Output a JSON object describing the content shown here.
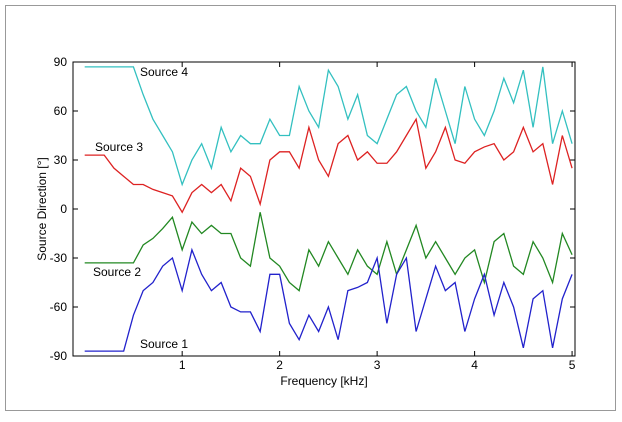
{
  "chart_data": {
    "type": "line",
    "xlabel": "Frequency [kHz]",
    "ylabel": "Source Direction [°]",
    "x": [
      0,
      0.1,
      0.2,
      0.3,
      0.4,
      0.5,
      0.6,
      0.7,
      0.8,
      0.9,
      1,
      1.1,
      1.2,
      1.3,
      1.4,
      1.5,
      1.6,
      1.7,
      1.8,
      1.9,
      2,
      2.1,
      2.2,
      2.3,
      2.4,
      2.5,
      2.6,
      2.7,
      2.8,
      2.9,
      3,
      3.1,
      3.2,
      3.3,
      3.4,
      3.5,
      3.6,
      3.7,
      3.8,
      3.9,
      4,
      4.1,
      4.2,
      4.3,
      4.4,
      4.5,
      4.6,
      4.7,
      4.8,
      4.9,
      5
    ],
    "series": [
      {
        "name": "Source 4",
        "color": "#33c0c0",
        "values": [
          87,
          87,
          87,
          87,
          87,
          87,
          70,
          55,
          45,
          35,
          15,
          30,
          40,
          25,
          50,
          35,
          45,
          40,
          40,
          55,
          45,
          45,
          75,
          60,
          50,
          85,
          75,
          55,
          70,
          45,
          40,
          55,
          70,
          75,
          60,
          50,
          80,
          60,
          40,
          75,
          55,
          45,
          60,
          80,
          65,
          85,
          50,
          87,
          40,
          60,
          40
        ]
      },
      {
        "name": "Source 3",
        "color": "#dd2222",
        "values": [
          33,
          33,
          33,
          25,
          20,
          15,
          15,
          12,
          10,
          8,
          -2,
          10,
          15,
          10,
          15,
          5,
          25,
          20,
          3,
          30,
          35,
          35,
          25,
          50,
          30,
          20,
          40,
          45,
          30,
          35,
          28,
          28,
          35,
          45,
          55,
          25,
          35,
          50,
          30,
          28,
          35,
          38,
          40,
          30,
          35,
          50,
          35,
          40,
          15,
          45,
          25
        ]
      },
      {
        "name": "Source 2",
        "color": "#228822",
        "values": [
          -33,
          -33,
          -33,
          -33,
          -33,
          -33,
          -22,
          -18,
          -12,
          -5,
          -25,
          -8,
          -15,
          -10,
          -15,
          -15,
          -30,
          -35,
          -2,
          -30,
          -35,
          -45,
          -50,
          -25,
          -35,
          -20,
          -30,
          -40,
          -25,
          -35,
          -40,
          -20,
          -40,
          -25,
          -10,
          -30,
          -20,
          -30,
          -40,
          -30,
          -25,
          -45,
          -20,
          -15,
          -35,
          -40,
          -20,
          -30,
          -45,
          -15,
          -28
        ]
      },
      {
        "name": "Source 1",
        "color": "#2222cc",
        "values": [
          -87,
          -87,
          -87,
          -87,
          -87,
          -65,
          -50,
          -45,
          -35,
          -30,
          -50,
          -25,
          -40,
          -50,
          -45,
          -60,
          -63,
          -63,
          -75,
          -40,
          -40,
          -70,
          -80,
          -65,
          -75,
          -60,
          -80,
          -50,
          -48,
          -45,
          -30,
          -70,
          -40,
          -30,
          -75,
          -55,
          -35,
          -50,
          -45,
          -75,
          -55,
          -40,
          -65,
          -45,
          -60,
          -85,
          -55,
          -50,
          -85,
          -55,
          -40
        ]
      }
    ],
    "xlim": [
      -0.12,
      5.03
    ],
    "ylim": [
      -90,
      90
    ],
    "xticks": [
      1,
      2,
      3,
      4,
      5
    ],
    "yticks": [
      -90,
      -60,
      -30,
      0,
      30,
      60,
      90
    ],
    "grid": false
  }
}
